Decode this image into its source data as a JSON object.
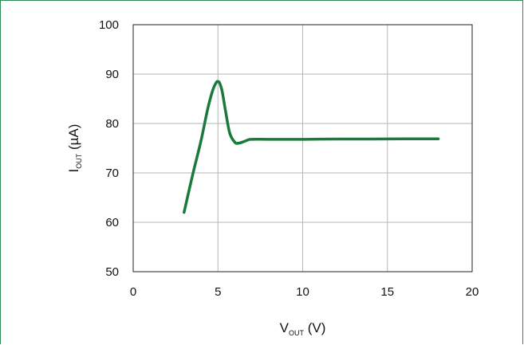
{
  "chart_data": {
    "type": "line",
    "xlabel": {
      "main": "V",
      "sub": "OUT",
      "unit": " (V)"
    },
    "ylabel": {
      "main": "I",
      "sub": "OUT",
      "unit": " (µA)"
    },
    "xlim": [
      0,
      20
    ],
    "ylim": [
      50,
      100
    ],
    "x_ticks": [
      0,
      5,
      10,
      15,
      20
    ],
    "y_ticks": [
      50,
      60,
      70,
      80,
      90,
      100
    ],
    "grid": true,
    "line_color": "#1a7a3c",
    "series": [
      {
        "x": [
          3.0,
          3.5,
          4.0,
          4.4,
          4.7,
          4.9,
          5.0,
          5.1,
          5.25,
          5.45,
          5.7,
          6.0,
          6.2,
          6.5,
          6.8,
          7.0,
          8.0,
          10.0,
          12.0,
          14.0,
          16.0,
          18.0
        ],
        "y": [
          62.0,
          69.5,
          76.5,
          83.0,
          86.8,
          88.3,
          88.5,
          88.2,
          86.5,
          82.5,
          78.0,
          76.2,
          76.0,
          76.3,
          76.7,
          76.8,
          76.8,
          76.8,
          76.85,
          76.85,
          76.9,
          76.9
        ]
      }
    ]
  }
}
